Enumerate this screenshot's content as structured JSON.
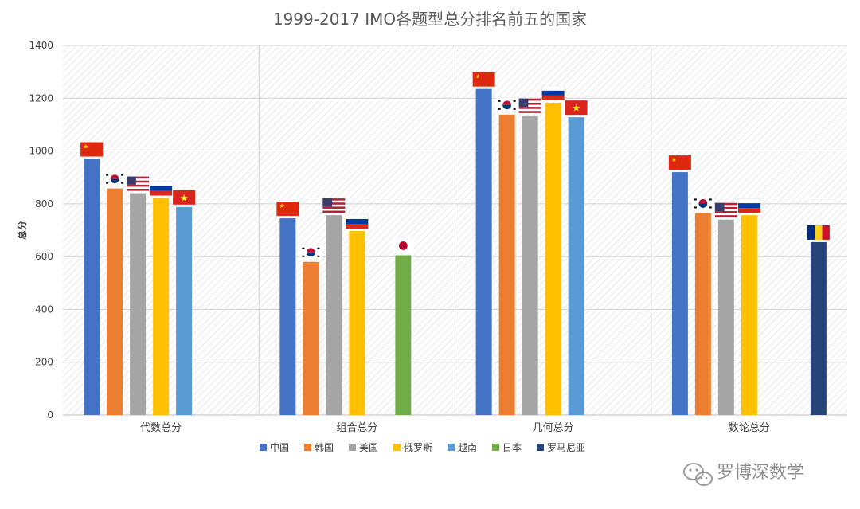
{
  "chart_data": {
    "type": "bar",
    "title": "1999-2017 IMO各题型总分排名前五的国家",
    "ylabel": "总分",
    "xlabel": "",
    "ylim": [
      0,
      1400
    ],
    "yticks": [
      0,
      200,
      400,
      600,
      800,
      1000,
      1200,
      1400
    ],
    "grid": true,
    "legend_position": "bottom",
    "categories": [
      "代数总分",
      "组合总分",
      "几何总分",
      "数论总分"
    ],
    "series": [
      {
        "name": "中国",
        "color": "#4472C4",
        "flag": "china-flag",
        "values": [
          970,
          745,
          1235,
          920
        ]
      },
      {
        "name": "韩国",
        "color": "#ED7D31",
        "flag": "korea-flag",
        "values": [
          858,
          580,
          1138,
          765
        ]
      },
      {
        "name": "美国",
        "color": "#A5A5A5",
        "flag": "usa-flag",
        "values": [
          840,
          757,
          1135,
          740
        ]
      },
      {
        "name": "俄罗斯",
        "color": "#FFC000",
        "flag": "russia-flag",
        "values": [
          822,
          697,
          1183,
          757
        ]
      },
      {
        "name": "越南",
        "color": "#5B9BD5",
        "flag": "vietnam-flag",
        "values": [
          788,
          null,
          1128,
          null
        ]
      },
      {
        "name": "日本",
        "color": "#70AD47",
        "flag": "japan-flag",
        "values": [
          null,
          605,
          null,
          null
        ]
      },
      {
        "name": "罗马尼亚",
        "color": "#264478",
        "flag": "romania-flag",
        "values": [
          null,
          null,
          null,
          655
        ]
      }
    ]
  },
  "watermark": {
    "text": "罗博深数学",
    "icon": "wechat-icon"
  }
}
